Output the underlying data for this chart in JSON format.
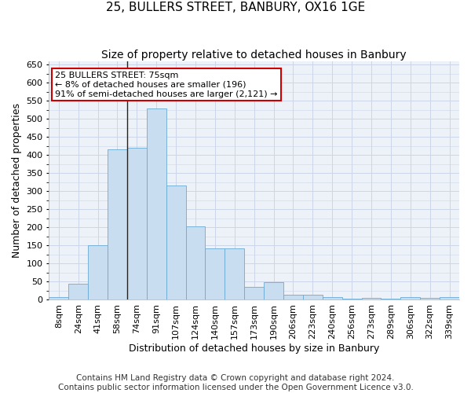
{
  "title": "25, BULLERS STREET, BANBURY, OX16 1GE",
  "subtitle": "Size of property relative to detached houses in Banbury",
  "xlabel": "Distribution of detached houses by size in Banbury",
  "ylabel": "Number of detached properties",
  "categories": [
    "8sqm",
    "24sqm",
    "41sqm",
    "58sqm",
    "74sqm",
    "91sqm",
    "107sqm",
    "124sqm",
    "140sqm",
    "157sqm",
    "173sqm",
    "190sqm",
    "206sqm",
    "223sqm",
    "240sqm",
    "256sqm",
    "273sqm",
    "289sqm",
    "306sqm",
    "322sqm",
    "339sqm"
  ],
  "values": [
    8,
    45,
    150,
    415,
    420,
    530,
    315,
    203,
    143,
    143,
    35,
    48,
    15,
    13,
    8,
    3,
    5,
    3,
    7,
    5,
    8
  ],
  "bar_color": "#c9ddf0",
  "bar_edge_color": "#6aaad4",
  "annotation_text": "25 BULLERS STREET: 75sqm\n← 8% of detached houses are smaller (196)\n91% of semi-detached houses are larger (2,121) →",
  "annotation_box_color": "#ffffff",
  "annotation_border_color": "#cc0000",
  "vline_x_index": 4,
  "vline_color": "#222222",
  "ylim": [
    0,
    660
  ],
  "yticks": [
    0,
    50,
    100,
    150,
    200,
    250,
    300,
    350,
    400,
    450,
    500,
    550,
    600,
    650
  ],
  "grid_color": "#ccd6e8",
  "background_color": "#edf2f9",
  "footer_text": "Contains HM Land Registry data © Crown copyright and database right 2024.\nContains public sector information licensed under the Open Government Licence v3.0.",
  "title_fontsize": 11,
  "subtitle_fontsize": 10,
  "xlabel_fontsize": 9,
  "ylabel_fontsize": 9,
  "tick_fontsize": 8,
  "footer_fontsize": 7.5,
  "annotation_fontsize": 8
}
